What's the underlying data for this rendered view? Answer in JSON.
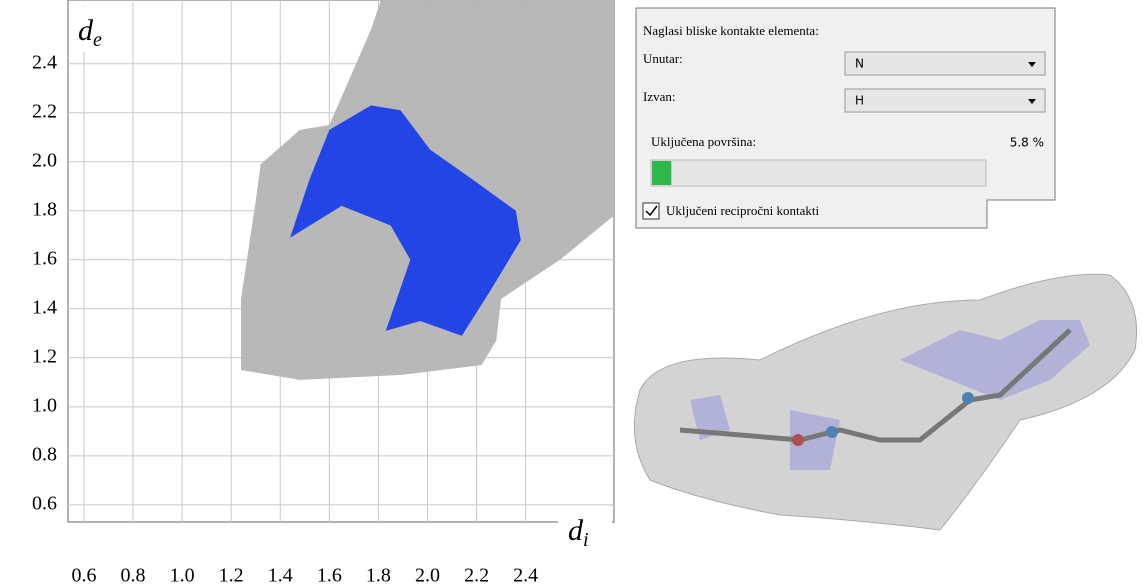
{
  "chart_data": {
    "type": "area",
    "ylabel_symbol": "d",
    "ylabel_subscript": "e",
    "xlabel_symbol": "d",
    "xlabel_subscript": "i",
    "xlim": [
      0.535,
      2.76
    ],
    "ylim": [
      0.53,
      2.66
    ],
    "xticks": [
      0.6,
      0.8,
      {
        "value": 1,
        "label": "1.0"
      },
      1.2,
      1.4,
      1.6,
      1.8,
      {
        "value": 2,
        "label": "2.0"
      },
      2.2,
      2.4
    ],
    "yticks": [
      0.6,
      0.8,
      {
        "value": 1,
        "label": "1.0"
      },
      1.2,
      1.4,
      1.6,
      1.8,
      {
        "value": 2,
        "label": "2.0"
      },
      2.2,
      2.4
    ],
    "grid": true,
    "series": [
      {
        "color": "#b4b4b4",
        "x": [
          1.24,
          1.24,
          1.3,
          1.32,
          1.48,
          1.6,
          1.77,
          1.81,
          2.76,
          2.76,
          2.54,
          2.3,
          2.28,
          2.22,
          1.89,
          1.48
        ],
        "values": [
          1.15,
          1.44,
          1.84,
          1.99,
          2.13,
          2.15,
          2.54,
          2.66,
          2.66,
          1.78,
          1.6,
          1.44,
          1.27,
          1.17,
          1.13,
          1.11
        ]
      },
      {
        "color": "#1a3ee8",
        "x": [
          1.44,
          1.52,
          1.6,
          1.77,
          1.89,
          2.01,
          2.18,
          2.36,
          2.38,
          2.26,
          2.14,
          1.97,
          1.83,
          1.93,
          1.85,
          1.65
        ],
        "values": [
          1.69,
          1.93,
          2.13,
          2.23,
          2.21,
          2.05,
          1.93,
          1.8,
          1.68,
          1.48,
          1.29,
          1.35,
          1.31,
          1.6,
          1.74,
          1.82
        ]
      }
    ]
  },
  "panel": {
    "title": "Naglasi bliske kontakte elementa:",
    "inside_label": "Unutar:",
    "inside_value": "N",
    "outside_label": "Izvan:",
    "outside_value": "H",
    "surface_label": "Uključena površina:",
    "surface_value": 5.8,
    "surface_value_label": "5.8 %",
    "reciprocal_label": "Uključeni recipročni kontakti",
    "reciprocal_checked": true
  }
}
